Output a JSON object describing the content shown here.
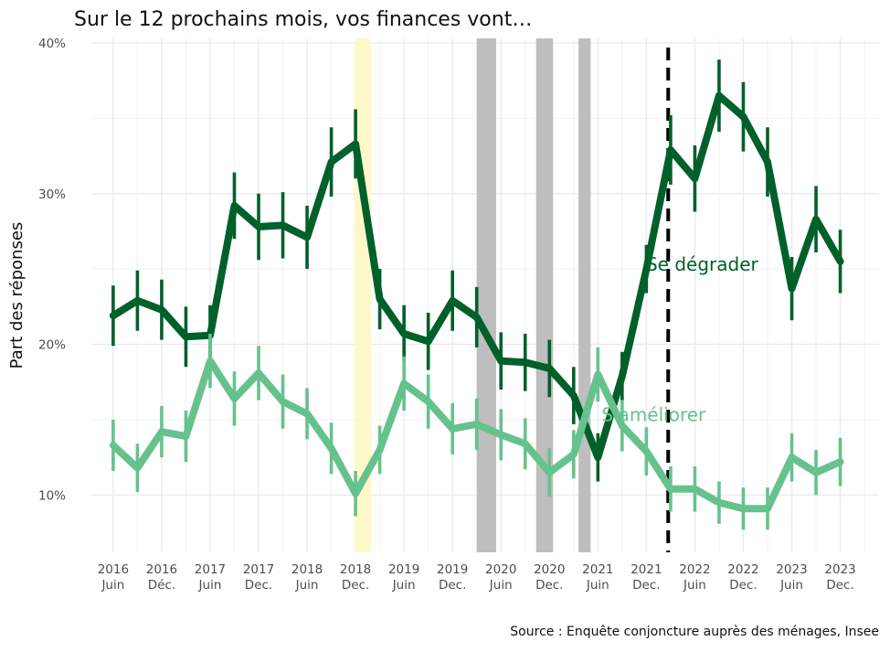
{
  "chart_data": {
    "type": "line",
    "title": "Sur le 12 prochains mois, vos finances vont…",
    "ylabel": "Part des réponses",
    "xlabel": "",
    "caption": "Source : Enquête conjoncture auprès des ménages, Insee",
    "ylim": [
      6.2,
      40.3
    ],
    "y_ticks": [
      10,
      20,
      30,
      40
    ],
    "y_tick_labels": [
      "10%",
      "20%",
      "30%",
      "40%"
    ],
    "x_labels": [
      {
        "year": "2016",
        "period": "Juin"
      },
      {
        "year": "2016",
        "period": "Déc."
      },
      {
        "year": "2017",
        "period": "Juin"
      },
      {
        "year": "2017",
        "period": "Dec."
      },
      {
        "year": "2018",
        "period": "Juin"
      },
      {
        "year": "2018",
        "period": "Dec."
      },
      {
        "year": "2019",
        "period": "Juin"
      },
      {
        "year": "2019",
        "period": "Dec."
      },
      {
        "year": "2020",
        "period": "Juin"
      },
      {
        "year": "2020",
        "period": "Dec."
      },
      {
        "year": "2021",
        "period": "Juin"
      },
      {
        "year": "2021",
        "period": "Dec."
      },
      {
        "year": "2022",
        "period": "Juin"
      },
      {
        "year": "2022",
        "period": "Dec."
      },
      {
        "year": "2023",
        "period": "Juin"
      },
      {
        "year": "2023",
        "period": "Dec."
      }
    ],
    "x_index_range": [
      -0.9,
      31.6
    ],
    "x_index": [
      0,
      1,
      2,
      3,
      4,
      5,
      6,
      7,
      8,
      9,
      10,
      11,
      12,
      13,
      14,
      15,
      16,
      17,
      18,
      19,
      20,
      21,
      22,
      23,
      24,
      25,
      26,
      27,
      28,
      29,
      30
    ],
    "shaded_periods": [
      {
        "from": 9.95,
        "to": 10.65,
        "color": "#fff9c9"
      },
      {
        "from": 15.0,
        "to": 15.8,
        "color": "#bebebe"
      },
      {
        "from": 17.45,
        "to": 18.15,
        "color": "#bebebe"
      },
      {
        "from": 19.2,
        "to": 19.7,
        "color": "#bebebe"
      }
    ],
    "vertical_line_at": 22.9,
    "series": [
      {
        "name": "Se dégrader",
        "color": "#00602a",
        "values": [
          21.9,
          22.9,
          22.3,
          20.5,
          20.6,
          29.2,
          27.8,
          27.9,
          27.1,
          32.1,
          33.3,
          23.0,
          20.7,
          20.2,
          22.9,
          21.8,
          18.9,
          18.8,
          18.4,
          16.6,
          12.5,
          17.9,
          25.0,
          32.9,
          31.0,
          36.5,
          35.1,
          32.1,
          23.7,
          28.3,
          25.5
        ],
        "ci": [
          2.0,
          2.0,
          2.0,
          2.0,
          2.0,
          2.2,
          2.2,
          2.2,
          2.1,
          2.3,
          2.3,
          2.0,
          1.9,
          1.9,
          2.0,
          2.0,
          1.9,
          1.9,
          1.9,
          1.9,
          1.6,
          1.6,
          1.6,
          2.3,
          2.2,
          2.4,
          2.3,
          2.3,
          2.1,
          2.2,
          2.1
        ]
      },
      {
        "name": "S'améliorer",
        "color": "#66c28c",
        "values": [
          13.3,
          11.8,
          14.2,
          13.9,
          18.9,
          16.4,
          18.1,
          16.2,
          15.4,
          13.1,
          10.1,
          13.0,
          17.4,
          16.2,
          14.4,
          14.7,
          14.0,
          13.4,
          11.5,
          12.7,
          18.0,
          14.6,
          12.9,
          10.4,
          10.4,
          9.5,
          9.1,
          9.1,
          12.5,
          11.5,
          12.2
        ],
        "ci": [
          1.7,
          1.6,
          1.7,
          1.7,
          1.8,
          1.8,
          1.8,
          1.8,
          1.7,
          1.7,
          1.5,
          1.6,
          1.8,
          1.8,
          1.7,
          1.7,
          1.7,
          1.7,
          1.6,
          1.6,
          1.8,
          1.7,
          1.6,
          1.5,
          1.5,
          1.4,
          1.4,
          1.4,
          1.6,
          1.5,
          1.6
        ]
      }
    ],
    "series_labels": [
      {
        "text": "Se dégrader",
        "at_index": 24.3,
        "at_value": 24.9,
        "color": "#00602a"
      },
      {
        "text": "S'améliorer",
        "at_index": 22.3,
        "at_value": 14.9,
        "color": "#66c28c"
      }
    ]
  }
}
